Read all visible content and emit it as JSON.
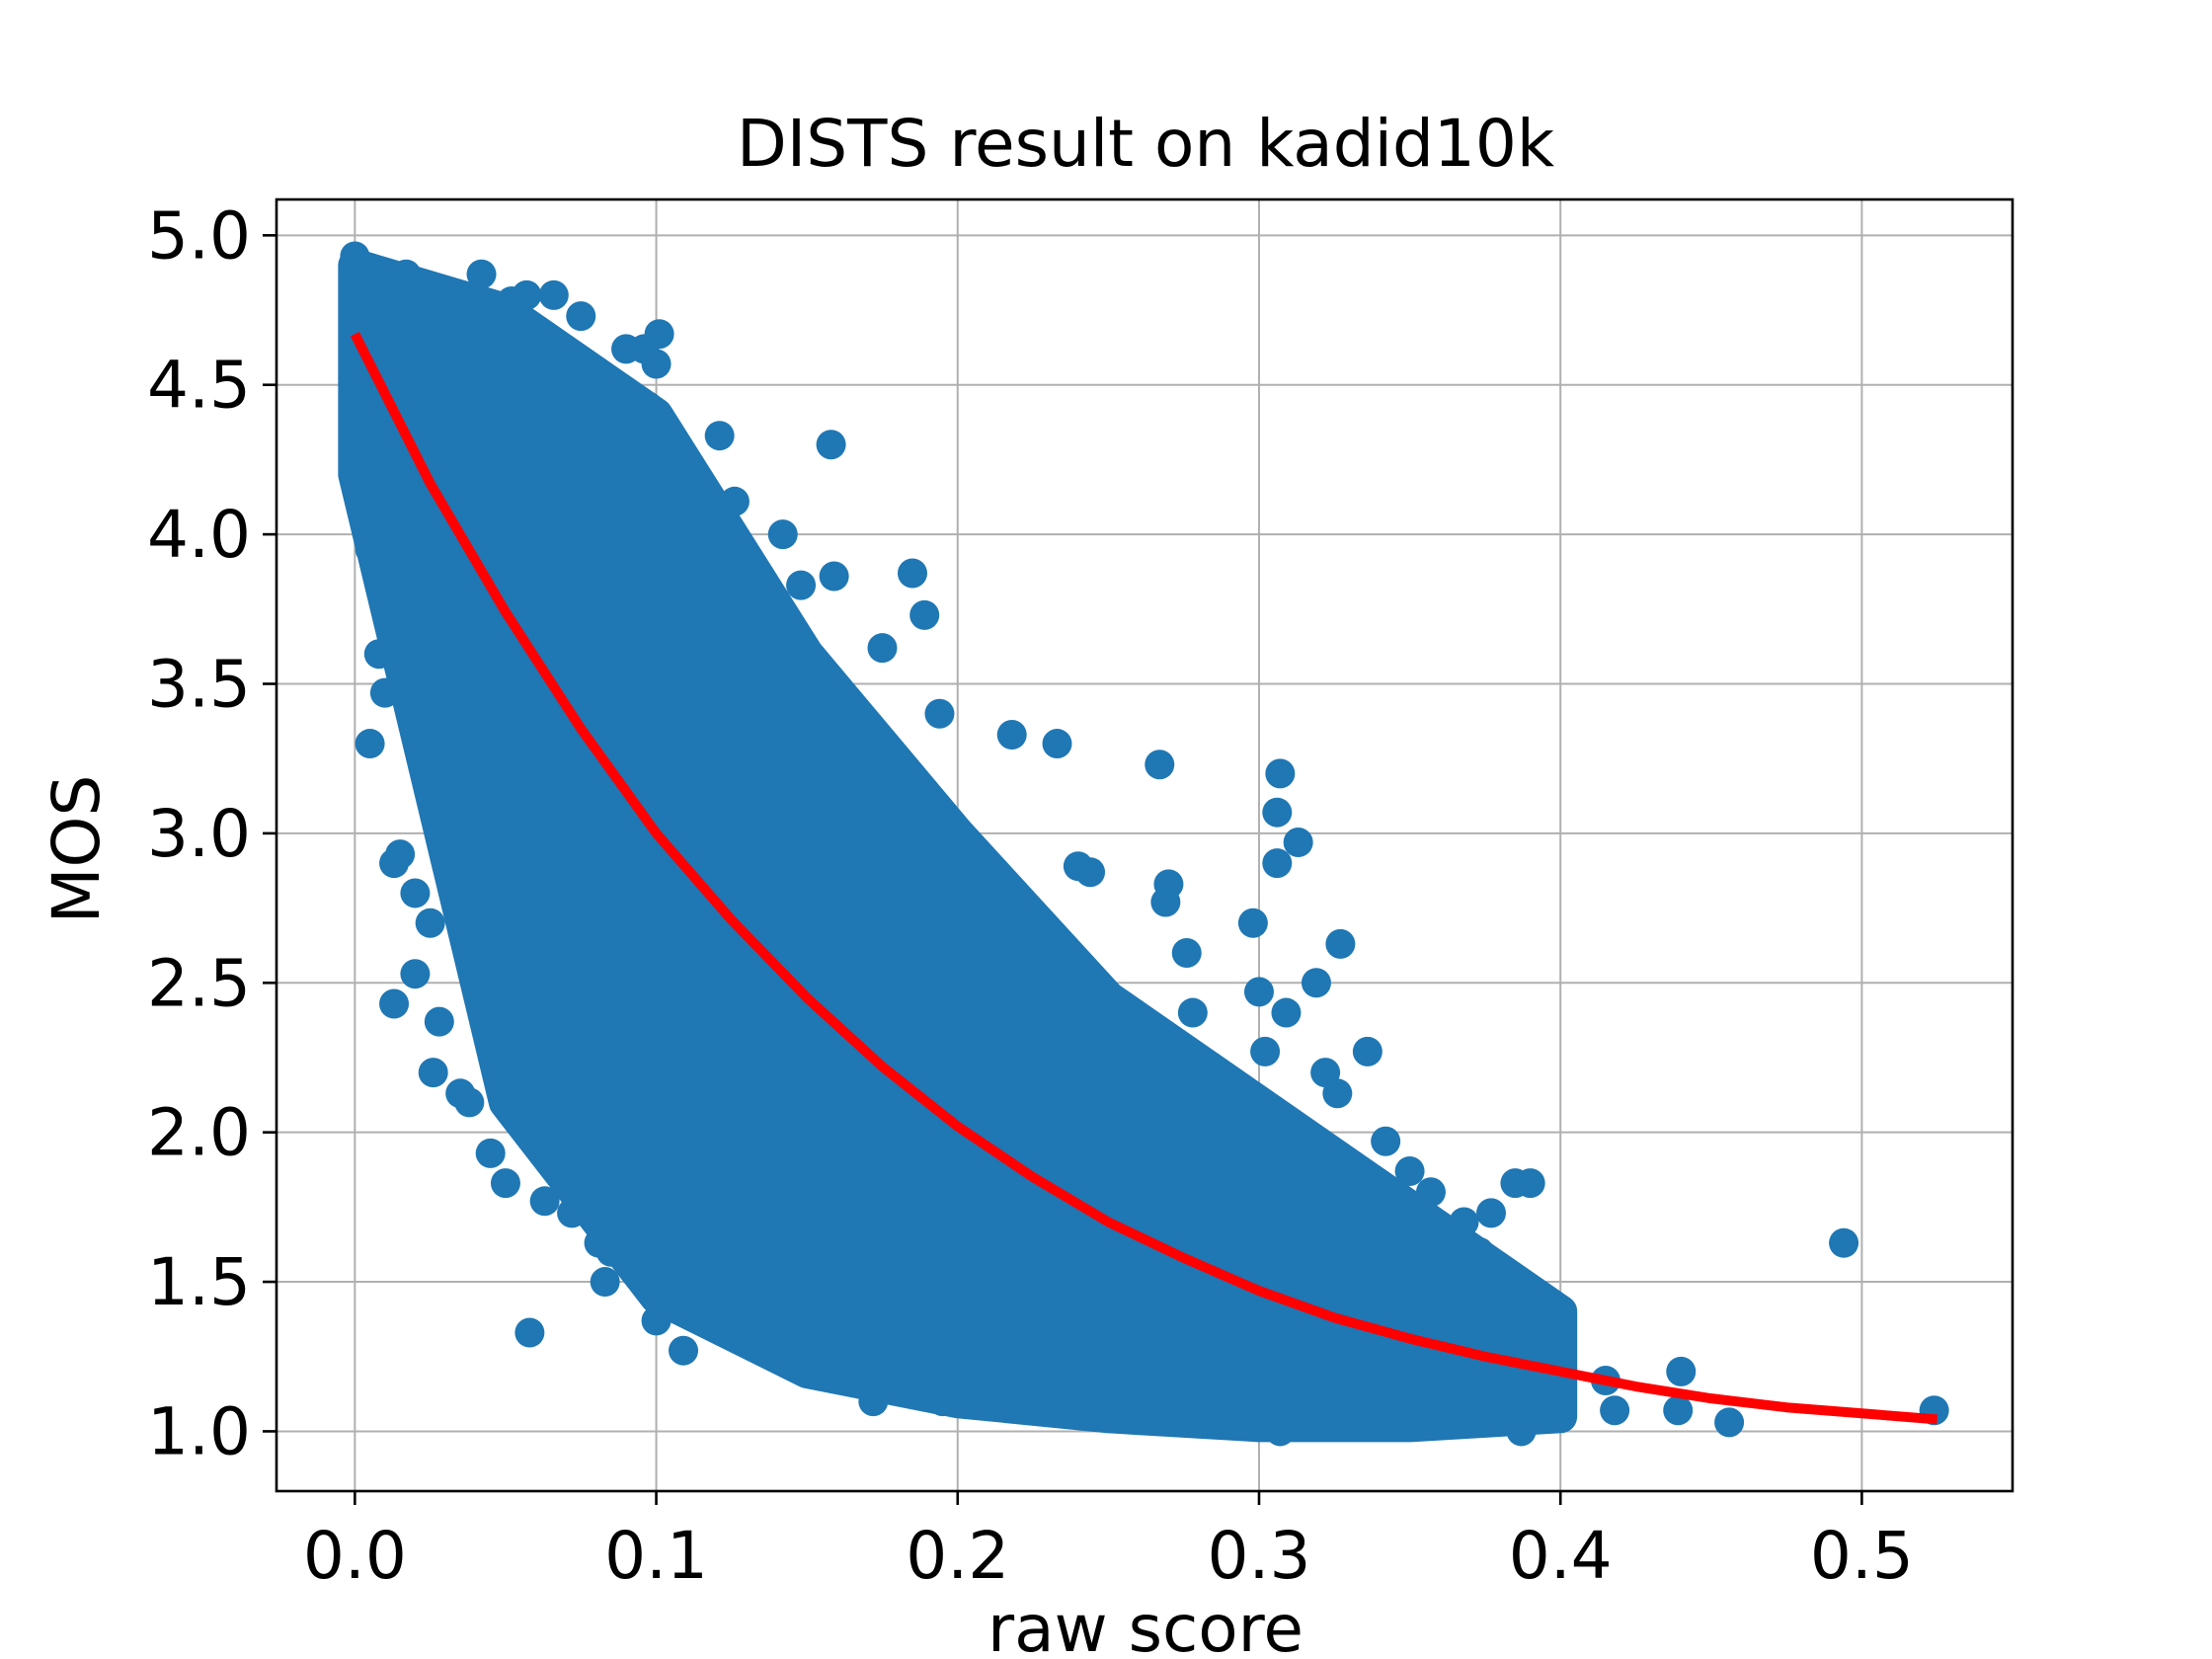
{
  "chart_data": {
    "type": "scatter",
    "title": "DISTS result on kadid10k",
    "xlabel": "raw score",
    "ylabel": "MOS",
    "xlim": [
      -0.026,
      0.55
    ],
    "ylim": [
      0.8,
      5.12
    ],
    "xticks": [
      0.0,
      0.1,
      0.2,
      0.3,
      0.4,
      0.5
    ],
    "xtick_labels": [
      "0.0",
      "0.1",
      "0.2",
      "0.3",
      "0.4",
      "0.5"
    ],
    "yticks": [
      1.0,
      1.5,
      2.0,
      2.5,
      3.0,
      3.5,
      4.0,
      4.5,
      5.0
    ],
    "ytick_labels": [
      "1.0",
      "1.5",
      "2.0",
      "2.5",
      "3.0",
      "3.5",
      "4.0",
      "4.5",
      "5.0"
    ],
    "grid": true,
    "legend": "none",
    "series": [
      {
        "kind": "scatter",
        "color": "#1f77b4",
        "dense_band": {
          "x": [
            0.0,
            0.05,
            0.1,
            0.15,
            0.2,
            0.25,
            0.3,
            0.35,
            0.4
          ],
          "y_low": [
            4.2,
            2.1,
            1.45,
            1.2,
            1.1,
            1.05,
            1.02,
            1.02,
            1.05
          ],
          "y_high": [
            4.9,
            4.75,
            4.4,
            3.6,
            3.0,
            2.45,
            2.1,
            1.75,
            1.4
          ],
          "approx_points": 10125
        },
        "points": [
          [
            0.0,
            4.93
          ],
          [
            0.003,
            4.85
          ],
          [
            0.01,
            4.87
          ],
          [
            0.017,
            4.87
          ],
          [
            0.042,
            4.87
          ],
          [
            0.052,
            4.78
          ],
          [
            0.057,
            4.8
          ],
          [
            0.066,
            4.8
          ],
          [
            0.075,
            4.73
          ],
          [
            0.09,
            4.62
          ],
          [
            0.096,
            4.62
          ],
          [
            0.101,
            4.67
          ],
          [
            0.1,
            4.57
          ],
          [
            0.097,
            4.43
          ],
          [
            0.121,
            4.33
          ],
          [
            0.126,
            4.11
          ],
          [
            0.142,
            4.0
          ],
          [
            0.158,
            4.3
          ],
          [
            0.148,
            3.83
          ],
          [
            0.159,
            3.86
          ],
          [
            0.185,
            3.87
          ],
          [
            0.189,
            3.73
          ],
          [
            0.175,
            3.62
          ],
          [
            0.194,
            3.4
          ],
          [
            0.218,
            3.33
          ],
          [
            0.233,
            3.3
          ],
          [
            0.267,
            3.23
          ],
          [
            0.307,
            3.2
          ],
          [
            0.306,
            3.07
          ],
          [
            0.313,
            2.97
          ],
          [
            0.306,
            2.9
          ],
          [
            0.24,
            2.89
          ],
          [
            0.244,
            2.87
          ],
          [
            0.27,
            2.83
          ],
          [
            0.269,
            2.77
          ],
          [
            0.298,
            2.7
          ],
          [
            0.327,
            2.63
          ],
          [
            0.276,
            2.6
          ],
          [
            0.319,
            2.5
          ],
          [
            0.3,
            2.47
          ],
          [
            0.309,
            2.4
          ],
          [
            0.278,
            2.4
          ],
          [
            0.336,
            2.27
          ],
          [
            0.302,
            2.27
          ],
          [
            0.322,
            2.2
          ],
          [
            0.326,
            2.13
          ],
          [
            0.342,
            1.97
          ],
          [
            0.35,
            1.87
          ],
          [
            0.357,
            1.8
          ],
          [
            0.385,
            1.83
          ],
          [
            0.39,
            1.83
          ],
          [
            0.377,
            1.73
          ],
          [
            0.368,
            1.7
          ],
          [
            0.373,
            1.6
          ],
          [
            0.352,
            1.63
          ],
          [
            0.393,
            1.43
          ],
          [
            0.396,
            1.37
          ],
          [
            0.415,
            1.17
          ],
          [
            0.418,
            1.07
          ],
          [
            0.44,
            1.2
          ],
          [
            0.439,
            1.07
          ],
          [
            0.456,
            1.03
          ],
          [
            0.494,
            1.63
          ],
          [
            0.524,
            1.07
          ],
          [
            0.387,
            1.0
          ],
          [
            0.307,
            1.0
          ],
          [
            0.323,
            1.03
          ],
          [
            0.058,
            1.33
          ],
          [
            0.109,
            1.27
          ],
          [
            0.1,
            1.37
          ],
          [
            0.12,
            1.37
          ],
          [
            0.083,
            1.5
          ],
          [
            0.172,
            1.1
          ],
          [
            0.195,
            1.1
          ],
          [
            0.213,
            1.13
          ],
          [
            0.226,
            1.13
          ],
          [
            0.255,
            1.07
          ],
          [
            0.0,
            4.2
          ],
          [
            0.005,
            3.95
          ],
          [
            0.008,
            3.6
          ],
          [
            0.005,
            3.3
          ],
          [
            0.01,
            3.47
          ],
          [
            0.015,
            2.93
          ],
          [
            0.013,
            2.9
          ],
          [
            0.02,
            2.8
          ],
          [
            0.025,
            2.7
          ],
          [
            0.02,
            2.53
          ],
          [
            0.013,
            2.43
          ],
          [
            0.028,
            2.37
          ],
          [
            0.026,
            2.2
          ],
          [
            0.035,
            2.13
          ],
          [
            0.038,
            2.1
          ],
          [
            0.045,
            1.93
          ],
          [
            0.05,
            1.83
          ],
          [
            0.063,
            1.77
          ],
          [
            0.072,
            1.73
          ],
          [
            0.081,
            1.63
          ],
          [
            0.085,
            1.6
          ]
        ]
      },
      {
        "kind": "line",
        "color": "#ff0000",
        "x": [
          0.0,
          0.025,
          0.05,
          0.075,
          0.1,
          0.125,
          0.15,
          0.175,
          0.2,
          0.225,
          0.25,
          0.275,
          0.3,
          0.325,
          0.35,
          0.375,
          0.4,
          0.425,
          0.45,
          0.475,
          0.5,
          0.525
        ],
        "y": [
          4.67,
          4.17,
          3.74,
          3.35,
          3.0,
          2.71,
          2.45,
          2.22,
          2.02,
          1.85,
          1.7,
          1.58,
          1.47,
          1.38,
          1.31,
          1.25,
          1.2,
          1.15,
          1.11,
          1.08,
          1.06,
          1.04
        ]
      }
    ]
  }
}
